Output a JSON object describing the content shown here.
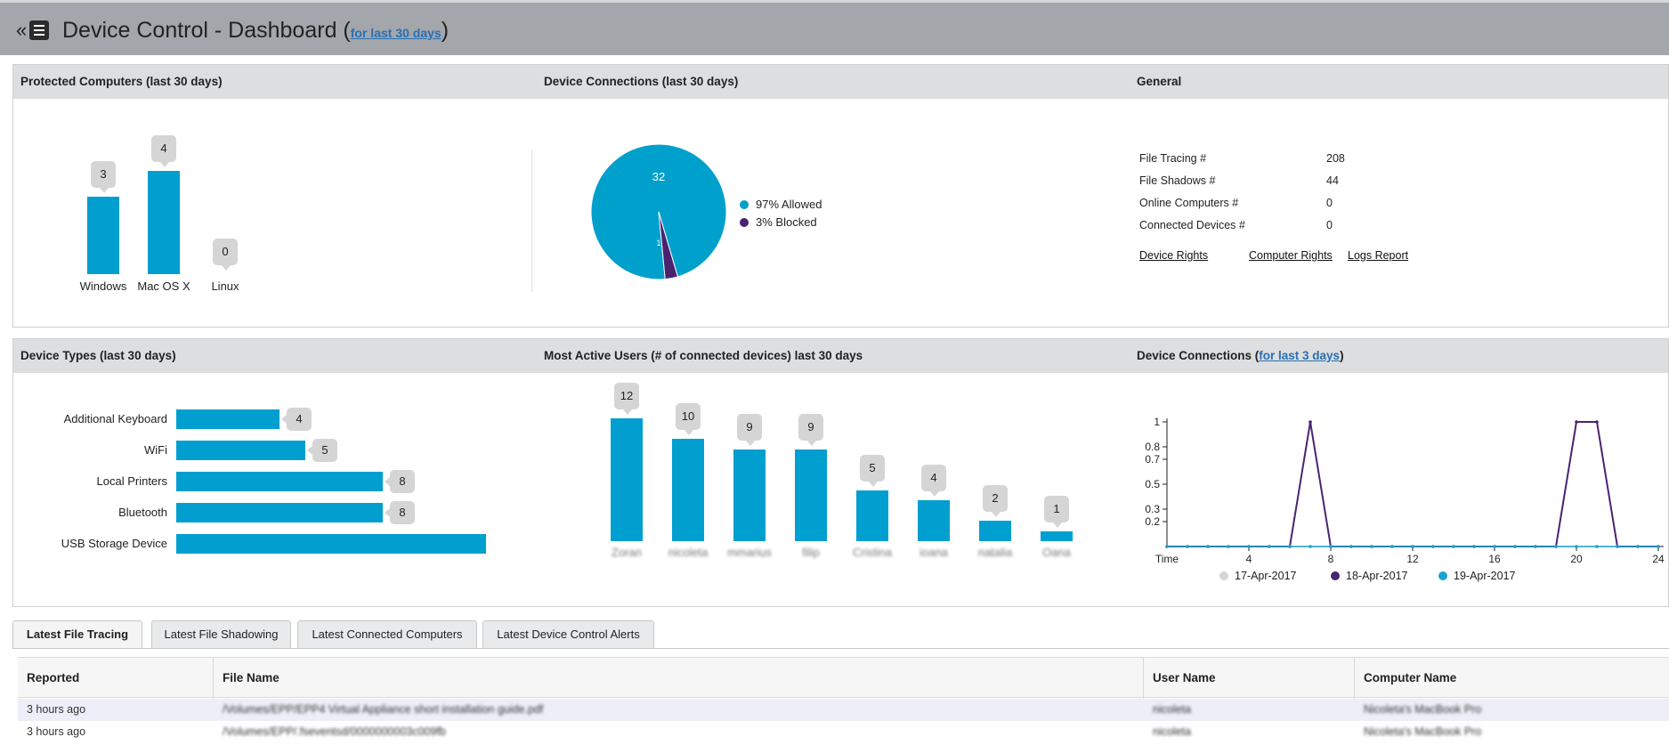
{
  "header": {
    "back_glyph": "«",
    "title": "Device Control - Dashboard (",
    "period_link": "for last 30 days",
    "close_paren": ")"
  },
  "protected": {
    "title": "Protected Computers (last 30 days)",
    "chart_data": {
      "type": "bar",
      "categories": [
        "Windows",
        "Mac OS X",
        "Linux"
      ],
      "values": [
        3,
        4,
        0
      ]
    }
  },
  "connections_pie": {
    "title": "Device Connections (last 30 days)",
    "inside_label": "32",
    "slice_label": "1",
    "chart_data": {
      "type": "pie",
      "labels": [
        "97% Allowed",
        "3% Blocked"
      ],
      "values": [
        32,
        1
      ],
      "colors": [
        "#00a0cc",
        "#4a2370"
      ]
    }
  },
  "general": {
    "title": "General",
    "rows": [
      {
        "label": "File Tracing #",
        "value": "208"
      },
      {
        "label": "File Shadows #",
        "value": "44"
      },
      {
        "label": "Online Computers #",
        "value": "0"
      },
      {
        "label": "Connected Devices #",
        "value": "0"
      }
    ],
    "links": [
      "Device Rights",
      "Computer Rights",
      "Logs Report"
    ]
  },
  "device_types": {
    "title": "Device Types (last 30 days)",
    "chart_data": {
      "type": "bar",
      "categories": [
        "Additional Keyboard",
        "WiFi",
        "Local Printers",
        "Bluetooth",
        "USB Storage Device"
      ],
      "values": [
        4,
        5,
        8,
        8,
        12
      ]
    }
  },
  "active_users": {
    "title": "Most Active Users (# of connected devices) last 30 days",
    "chart_data": {
      "type": "bar",
      "categories": [
        "Zoran",
        "nicoleta",
        "mmarius",
        "filip",
        "Cristina",
        "ioana",
        "natalia",
        "Oana"
      ],
      "values": [
        12,
        10,
        9,
        9,
        5,
        4,
        2,
        1
      ]
    }
  },
  "connections_line": {
    "title_prefix": "Device Connections (",
    "title_link": "for last 3 days",
    "title_suffix": ")",
    "chart_data": {
      "type": "line",
      "xlabel": "Time",
      "x_ticks": [
        "4",
        "8",
        "12",
        "16",
        "20",
        "24"
      ],
      "y_ticks": [
        "1",
        "0.8",
        "0.7",
        "0.5",
        "0.3",
        "0.2"
      ],
      "xlim": [
        0,
        24
      ],
      "ylim": [
        0,
        1
      ],
      "series": [
        {
          "name": "17-Apr-2017",
          "color": "#d6d6d6",
          "x": [
            0,
            1,
            2,
            3,
            4,
            5,
            6,
            7,
            8,
            9,
            10,
            11,
            12,
            13,
            14,
            15,
            16,
            17,
            18,
            19,
            20,
            21,
            22,
            23,
            24
          ],
          "y": [
            0,
            0,
            0,
            0,
            0,
            0,
            0,
            0,
            0,
            0,
            0,
            0,
            0,
            0,
            0,
            0,
            0,
            0,
            0,
            0,
            0,
            0,
            0,
            0,
            0
          ]
        },
        {
          "name": "18-Apr-2017",
          "color": "#4a2370",
          "x": [
            0,
            1,
            2,
            3,
            4,
            5,
            6,
            7,
            8,
            9,
            10,
            11,
            12,
            13,
            14,
            15,
            16,
            17,
            18,
            19,
            20,
            21,
            22,
            23,
            24
          ],
          "y": [
            0,
            0,
            0,
            0,
            0,
            0,
            0,
            1,
            0,
            0,
            0,
            0,
            0,
            0,
            0,
            0,
            0,
            0,
            0,
            0,
            1,
            1,
            0,
            0,
            0
          ]
        },
        {
          "name": "19-Apr-2017",
          "color": "#1aa3cf",
          "x": [
            0,
            1,
            2,
            3,
            4,
            5,
            6,
            7,
            8,
            9,
            10,
            11,
            12,
            13,
            14,
            15,
            16,
            17,
            18,
            19,
            20,
            21,
            22,
            23,
            24
          ],
          "y": [
            0,
            0,
            0,
            0,
            0,
            0,
            0,
            0,
            0,
            0,
            0,
            0,
            0,
            0,
            0,
            0,
            0,
            0,
            0,
            0,
            0,
            0,
            0,
            0,
            0
          ]
        }
      ]
    }
  },
  "tabs": [
    {
      "label": "Latest File Tracing",
      "active": true
    },
    {
      "label": "Latest File Shadowing",
      "active": false
    },
    {
      "label": "Latest Connected Computers",
      "active": false
    },
    {
      "label": "Latest Device Control Alerts",
      "active": false
    }
  ],
  "table": {
    "columns": [
      "Reported",
      "File Name",
      "User Name",
      "Computer Name"
    ],
    "rows": [
      [
        "3 hours ago",
        "/Volumes/EPP/EPP4 Virtual Appliance short installation guide.pdf",
        "nicoleta",
        "Nicoleta's MacBook Pro"
      ],
      [
        "3 hours ago",
        "/Volumes/EPP/.fseventsd/0000000003c009fb",
        "nicoleta",
        "Nicoleta's MacBook Pro"
      ]
    ]
  }
}
